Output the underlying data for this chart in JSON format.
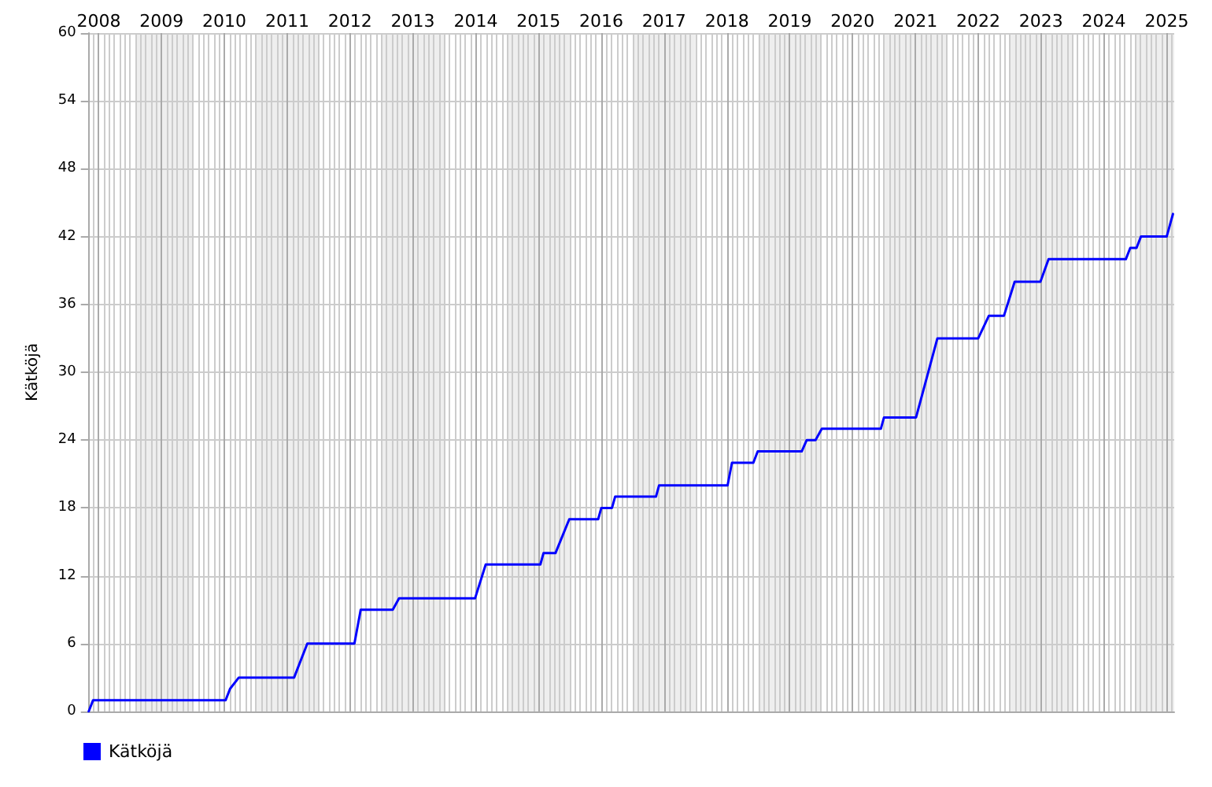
{
  "chart_data": {
    "type": "line",
    "ylabel": "Kätköjä",
    "x": [
      2007.84,
      2007.91,
      2010.02,
      2010.09,
      2010.23,
      2011.11,
      2011.32,
      2012.07,
      2012.17,
      2012.68,
      2012.78,
      2013.99,
      2014.16,
      2015.03,
      2015.08,
      2015.27,
      2015.49,
      2015.95,
      2016.0,
      2016.17,
      2016.22,
      2016.87,
      2016.92,
      2018.01,
      2018.08,
      2018.42,
      2018.49,
      2019.19,
      2019.27,
      2019.41,
      2019.51,
      2020.45,
      2020.5,
      2021.01,
      2021.35,
      2022.0,
      2022.17,
      2022.41,
      2022.58,
      2022.99,
      2023.12,
      2024.35,
      2024.42,
      2024.52,
      2024.59,
      2025.0,
      2025.1
    ],
    "series": [
      {
        "name": "Kätköjä",
        "color": "#0000ff",
        "values": [
          0,
          1,
          1,
          2,
          3,
          3,
          6,
          6,
          9,
          9,
          10,
          10,
          13,
          13,
          14,
          14,
          17,
          17,
          18,
          18,
          19,
          19,
          20,
          20,
          22,
          22,
          23,
          23,
          24,
          24,
          25,
          25,
          26,
          26,
          33,
          33,
          35,
          35,
          38,
          38,
          40,
          40,
          41,
          41,
          42,
          42,
          44
        ]
      }
    ],
    "xlim": [
      2007.84,
      2025.12
    ],
    "xticks": [
      2008,
      2009,
      2010,
      2011,
      2012,
      2013,
      2014,
      2015,
      2016,
      2017,
      2018,
      2019,
      2020,
      2021,
      2022,
      2023,
      2024,
      2025
    ],
    "ylim": [
      0,
      60
    ],
    "yticks": [
      0,
      6,
      12,
      18,
      24,
      30,
      36,
      42,
      48,
      54,
      60
    ],
    "bands": [
      {
        "axis": "x",
        "from": 2008.6,
        "to": 2009.5,
        "color": "#eeeeee"
      },
      {
        "axis": "x",
        "from": 2010.5,
        "to": 2011.5,
        "color": "#eeeeee"
      },
      {
        "axis": "x",
        "from": 2012.5,
        "to": 2013.5,
        "color": "#eeeeee"
      },
      {
        "axis": "x",
        "from": 2014.5,
        "to": 2015.5,
        "color": "#eeeeee"
      },
      {
        "axis": "x",
        "from": 2016.5,
        "to": 2017.5,
        "color": "#eeeeee"
      },
      {
        "axis": "x",
        "from": 2018.5,
        "to": 2019.5,
        "color": "#eeeeee"
      },
      {
        "axis": "x",
        "from": 2020.5,
        "to": 2021.5,
        "color": "#eeeeee"
      },
      {
        "axis": "x",
        "from": 2022.5,
        "to": 2023.5,
        "color": "#eeeeee"
      },
      {
        "axis": "x",
        "from": 2024.5,
        "to": 2025.12,
        "color": "#eeeeee"
      }
    ],
    "grid": true,
    "legend": "bottom left",
    "marker": "none",
    "line_style": "solid"
  }
}
